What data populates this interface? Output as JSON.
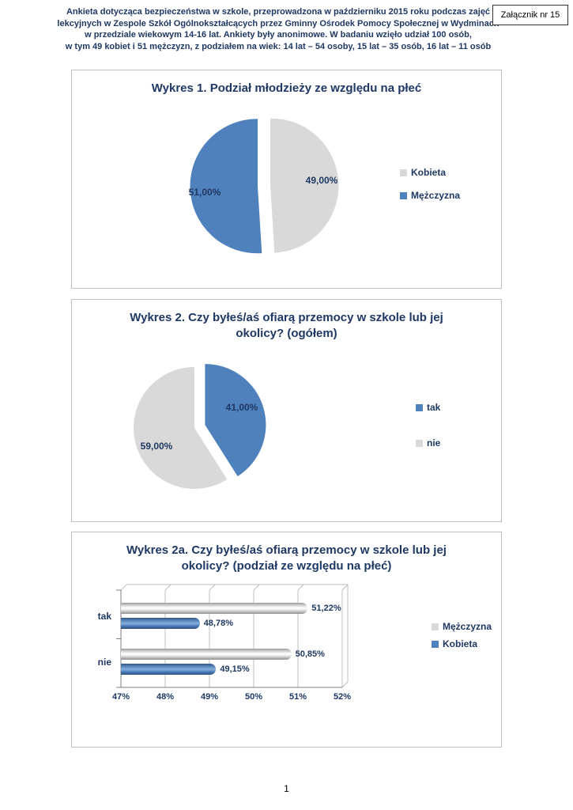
{
  "page": {
    "header_lines": [
      "Ankieta dotycząca bezpieczeństwa w szkole, przeprowadzona w październiku 2015 roku podczas zajęć",
      "lekcyjnych w Zespole Szkół Ogólnokształcących przez Gminny Ośrodek Pomocy Społecznej w Wydminach",
      "w przedziale wiekowym 14-16 lat.  Ankiety były anonimowe. W badaniu wzięło udział 100 osób,",
      "w tym 49 kobiet i 51 mężczyzn, z podziałem na wiek: 14 lat – 54 osoby, 15 lat – 35 osób, 16 lat – 11 osób"
    ],
    "attachment_label": "Załącznik nr 15",
    "page_number": "1"
  },
  "colors": {
    "text_navy": "#1f3864",
    "series_blue": "#4f81bd",
    "series_gray": "#d9d9d9",
    "grid_gray": "#bfbfbf",
    "axis_gray": "#7f7f7f"
  },
  "chart_data": [
    {
      "type": "pie",
      "title": "Wykres 1. Podział młodzieży ze względu na płeć",
      "title_lines": [
        "Wykres 1. Podział młodzieży ze względu na płeć"
      ],
      "labels": [
        "Kobieta",
        "Mężczyzna"
      ],
      "values": [
        49,
        51
      ],
      "value_labels": [
        "49,00%",
        "51,00%"
      ],
      "colors": [
        "#d9d9d9",
        "#4f81bd"
      ],
      "legend_position": "right"
    },
    {
      "type": "pie",
      "title": "Wykres 2. Czy byłeś/aś ofiarą przemocy w szkole lub jej okolicy? (ogółem)",
      "title_lines": [
        "Wykres 2. Czy byłeś/aś ofiarą przemocy w szkole lub jej",
        "okolicy? (ogółem)"
      ],
      "labels": [
        "tak",
        "nie"
      ],
      "values": [
        41,
        59
      ],
      "value_labels": [
        "41,00%",
        "59,00%"
      ],
      "colors": [
        "#4f81bd",
        "#d9d9d9"
      ],
      "legend_position": "right"
    },
    {
      "type": "bar",
      "orientation": "horizontal",
      "style": "3d-cylinder",
      "title": "Wykres 2a. Czy byłeś/aś ofiarą przemocy w szkole lub jej okolicy? (podział ze względu na płeć)",
      "title_lines": [
        "Wykres 2a. Czy byłeś/aś ofiarą przemocy w szkole lub jej",
        "okolicy? (podział ze względu na płeć)"
      ],
      "categories": [
        "tak",
        "nie"
      ],
      "series": [
        {
          "name": "Mężczyzna",
          "color": "#d9d9d9",
          "values": [
            51.22,
            50.85
          ],
          "value_labels": [
            "51,22%",
            "50,85%"
          ]
        },
        {
          "name": "Kobieta",
          "color": "#4f81bd",
          "values": [
            48.78,
            49.15
          ],
          "value_labels": [
            "48,78%",
            "49,15%"
          ]
        }
      ],
      "xlim": [
        47,
        52
      ],
      "x_ticks": [
        "47%",
        "48%",
        "49%",
        "50%",
        "51%",
        "52%"
      ],
      "legend_position": "right"
    }
  ]
}
